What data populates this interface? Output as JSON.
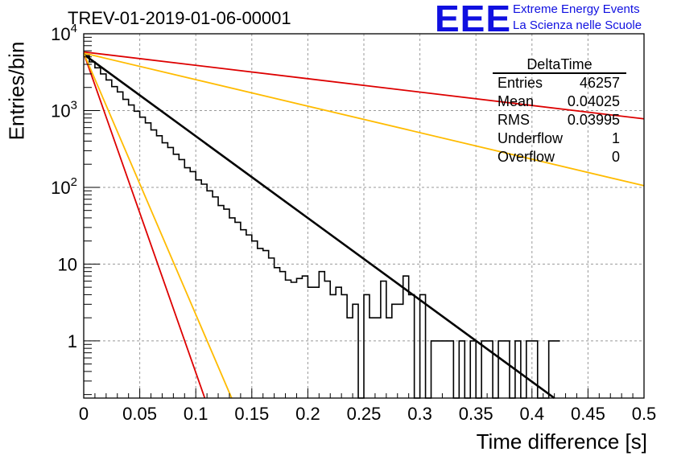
{
  "header": {
    "title": "TREV-01-2019-01-06-00001"
  },
  "logo": {
    "mark": "EEE",
    "line1": "Extreme Energy Events",
    "line2": "La Scienza nelle Scuole",
    "color": "#1010e0"
  },
  "stats_box": {
    "title": "DeltaTime",
    "rows": [
      {
        "key": "Entries",
        "value": "46257"
      },
      {
        "key": "Mean",
        "value": "0.04025"
      },
      {
        "key": "RMS",
        "value": "0.03995"
      },
      {
        "key": "Underflow",
        "value": "1"
      },
      {
        "key": "Overflow",
        "value": "0"
      }
    ]
  },
  "chart_data": {
    "type": "line",
    "title": "TREV-01-2019-01-06-00001",
    "xlabel": "Time difference [s]",
    "ylabel": "Entries/bin",
    "xlim": [
      0,
      0.5
    ],
    "ylim": [
      0.18,
      10000
    ],
    "yscale": "log",
    "grid": true,
    "x_ticks": [
      "0",
      "0.05",
      "0.1",
      "0.15",
      "0.2",
      "0.25",
      "0.3",
      "0.35",
      "0.4",
      "0.45",
      "0.5"
    ],
    "y_ticks": [
      {
        "value": 1,
        "label": "1"
      },
      {
        "value": 10,
        "label": "10"
      },
      {
        "value": 100,
        "label": "10",
        "sup": "2"
      },
      {
        "value": 1000,
        "label": "10",
        "sup": "3"
      },
      {
        "value": 10000,
        "label": "10",
        "sup": "4"
      }
    ],
    "histogram": {
      "name": "DeltaTime",
      "color": "#000000",
      "bin_width": 0.005,
      "x_start": 0,
      "values": [
        5200,
        4300,
        3600,
        3000,
        2500,
        2050,
        1750,
        1400,
        1180,
        980,
        820,
        690,
        560,
        470,
        380,
        330,
        270,
        230,
        180,
        160,
        125,
        110,
        90,
        75,
        58,
        52,
        40,
        35,
        28,
        24,
        20,
        16,
        15,
        12,
        9,
        8,
        6.2,
        5.8,
        6.5,
        7,
        5,
        5,
        8,
        6,
        4,
        5,
        4,
        2,
        3,
        0,
        4,
        2,
        2,
        6,
        2,
        3,
        3,
        7,
        4,
        0,
        4,
        0,
        1,
        1,
        1,
        1,
        0,
        1,
        0,
        1,
        0,
        1,
        1,
        0,
        1,
        1,
        0,
        1,
        0,
        1,
        1,
        0,
        0,
        1,
        1
      ]
    },
    "fit_lines": [
      {
        "name": "fit",
        "color": "#000000",
        "x": [
          0,
          0.42
        ],
        "y": [
          5400,
          0.18
        ]
      },
      {
        "name": "red-slow",
        "color": "#dd0000",
        "x": [
          0,
          0.5
        ],
        "y": [
          5800,
          780
        ]
      },
      {
        "name": "yellow-slow",
        "color": "#ffbb00",
        "x": [
          0,
          0.5
        ],
        "y": [
          5600,
          105
        ]
      },
      {
        "name": "red-fast",
        "color": "#dd0000",
        "x": [
          0,
          0.108
        ],
        "y": [
          5600,
          0.18
        ]
      },
      {
        "name": "yellow-fast",
        "color": "#ffbb00",
        "x": [
          0,
          0.132
        ],
        "y": [
          5600,
          0.18
        ]
      }
    ]
  }
}
